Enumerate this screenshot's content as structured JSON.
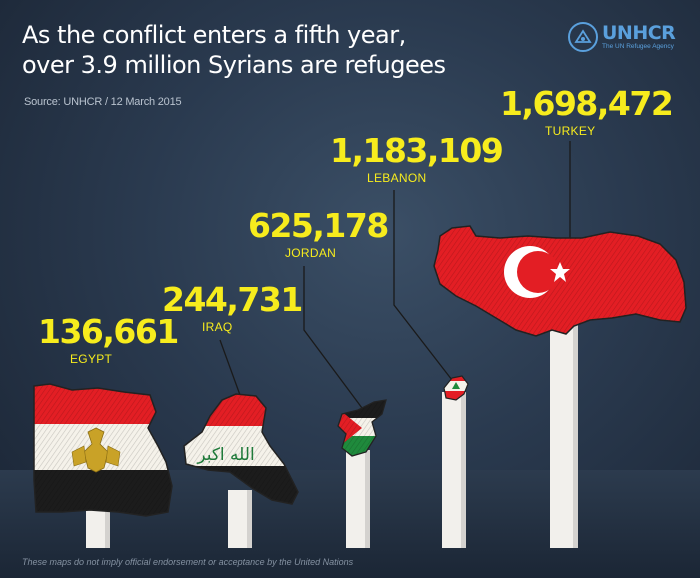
{
  "title_lines": [
    "As the conflict enters a fifth year,",
    "over 3.9 million Syrians are refugees"
  ],
  "source": "Source: UNHCR / 12 March 2015",
  "logo": {
    "name": "UNHCR",
    "tagline": "The UN Refugee Agency",
    "icon": "unhcr-emblem-icon",
    "color": "#5aa0dd"
  },
  "footer": "These maps do not imply official endorsement or acceptance by the United Nations",
  "chart_data": {
    "type": "bar",
    "categories": [
      "EGYPT",
      "IRAQ",
      "JORDAN",
      "LEBANON",
      "TURKEY"
    ],
    "values": [
      136661,
      244731,
      625178,
      1183109,
      1698472
    ],
    "value_labels": [
      "136,661",
      "244,731",
      "625,178",
      "1,183,109",
      "1,698,472"
    ],
    "title": "As the conflict enters a fifth year, over 3.9 million Syrians are refugees",
    "value_color": "#f7ec1d",
    "bar_color": "#f2f0ec",
    "flag_script_text": "الله اكبر"
  }
}
